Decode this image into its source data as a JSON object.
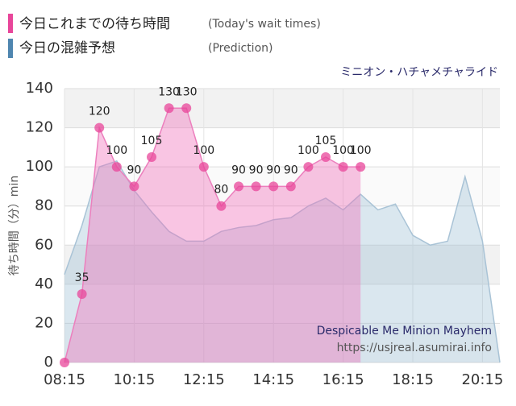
{
  "chart_data": {
    "type": "area",
    "title": "ミニオン・ハチャメチャライド",
    "ylabel": "待ち時間（分）min",
    "xlim": [
      "08:15",
      "20:45"
    ],
    "xticks": [
      "08:15",
      "10:15",
      "12:15",
      "14:15",
      "16:15",
      "18:15",
      "20:15"
    ],
    "ylim": [
      0,
      140
    ],
    "yticks": [
      0,
      20,
      40,
      60,
      80,
      100,
      120,
      140
    ],
    "grid": true,
    "series": [
      {
        "name": "今日の混雑予想",
        "name_en": "(Prediction)",
        "color": "#4f86b0",
        "x": [
          "08:15",
          "08:45",
          "09:15",
          "09:45",
          "10:15",
          "10:45",
          "11:15",
          "11:45",
          "12:15",
          "12:45",
          "13:15",
          "13:45",
          "14:15",
          "14:45",
          "15:15",
          "15:45",
          "16:15",
          "16:45",
          "17:15",
          "17:45",
          "18:15",
          "18:45",
          "19:15",
          "19:45",
          "20:15",
          "20:45"
        ],
        "values": [
          45,
          70,
          100,
          103,
          88,
          77,
          67,
          62,
          62,
          67,
          69,
          70,
          73,
          74,
          80,
          84,
          78,
          86,
          78,
          81,
          65,
          60,
          62,
          95,
          62,
          0
        ]
      },
      {
        "name": "今日これまでの待ち時間",
        "name_en": "(Today's wait times)",
        "color": "#e8469a",
        "x": [
          "08:15",
          "08:45",
          "09:15",
          "09:45",
          "10:15",
          "10:45",
          "11:15",
          "11:45",
          "12:15",
          "12:45",
          "13:15",
          "13:45",
          "14:15",
          "14:45",
          "15:15",
          "15:45",
          "16:15",
          "16:45"
        ],
        "values": [
          0,
          35,
          120,
          100,
          90,
          105,
          130,
          130,
          100,
          80,
          90,
          90,
          90,
          90,
          100,
          105,
          100,
          100
        ]
      }
    ],
    "annotations": [
      "Despicable Me Minion Mayhem",
      "https://usjreal.asumirai.info"
    ]
  }
}
